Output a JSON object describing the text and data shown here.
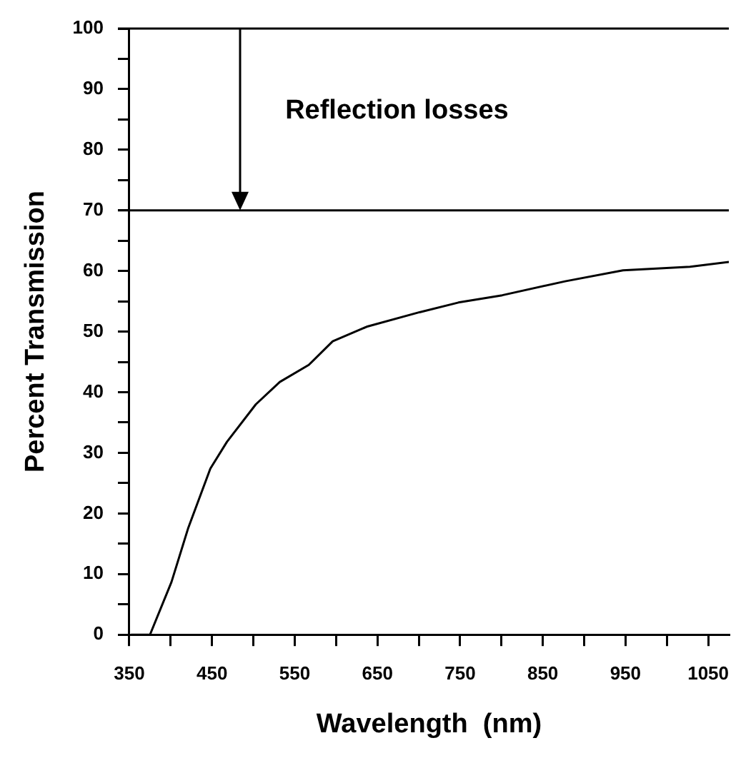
{
  "chart_data": {
    "type": "line",
    "xlabel": "Wavelength  (nm)",
    "ylabel": "Percent Transmission",
    "annotations": [
      "Reflection losses"
    ],
    "x": [
      352,
      375,
      401,
      421,
      448,
      468,
      503,
      532,
      567,
      596,
      637,
      701,
      748,
      801,
      877,
      947,
      1028,
      1075
    ],
    "series": [
      {
        "color": "#000000",
        "values": [
          0,
          0,
          8.7,
          17.5,
          27.4,
          31.8,
          38,
          41.7,
          44.5,
          48.4,
          50.8,
          53.2,
          54.8,
          56,
          58.3,
          60.1,
          60.7,
          61.5
        ]
      }
    ],
    "xlim": [
      350,
      1075
    ],
    "ylim": [
      0,
      100
    ],
    "xticks": [
      350,
      {
        "value": 400,
        "label": null
      },
      450,
      {
        "value": 500,
        "label": null
      },
      550,
      {
        "value": 600,
        "label": null
      },
      650,
      {
        "value": 700,
        "label": null
      },
      750,
      {
        "value": 800,
        "label": null
      },
      850,
      {
        "value": 900,
        "label": null
      },
      950,
      {
        "value": 1000,
        "label": null
      },
      1050
    ],
    "yticks": [
      0,
      {
        "value": 5,
        "label": null
      },
      10,
      {
        "value": 15,
        "label": null
      },
      20,
      {
        "value": 25,
        "label": null
      },
      30,
      {
        "value": 35,
        "label": null
      },
      40,
      {
        "value": 45,
        "label": null
      },
      50,
      {
        "value": 55,
        "label": null
      },
      60,
      {
        "value": 65,
        "label": null
      },
      70,
      {
        "value": 75,
        "label": null
      },
      80,
      {
        "value": 85,
        "label": null
      },
      90,
      {
        "value": 95,
        "label": null
      },
      100
    ],
    "ref_lines": [
      {
        "axis": "y",
        "value": 70,
        "color": "#000000"
      }
    ],
    "grid": false,
    "legend": false,
    "marker": "none",
    "line_style": "solid"
  }
}
